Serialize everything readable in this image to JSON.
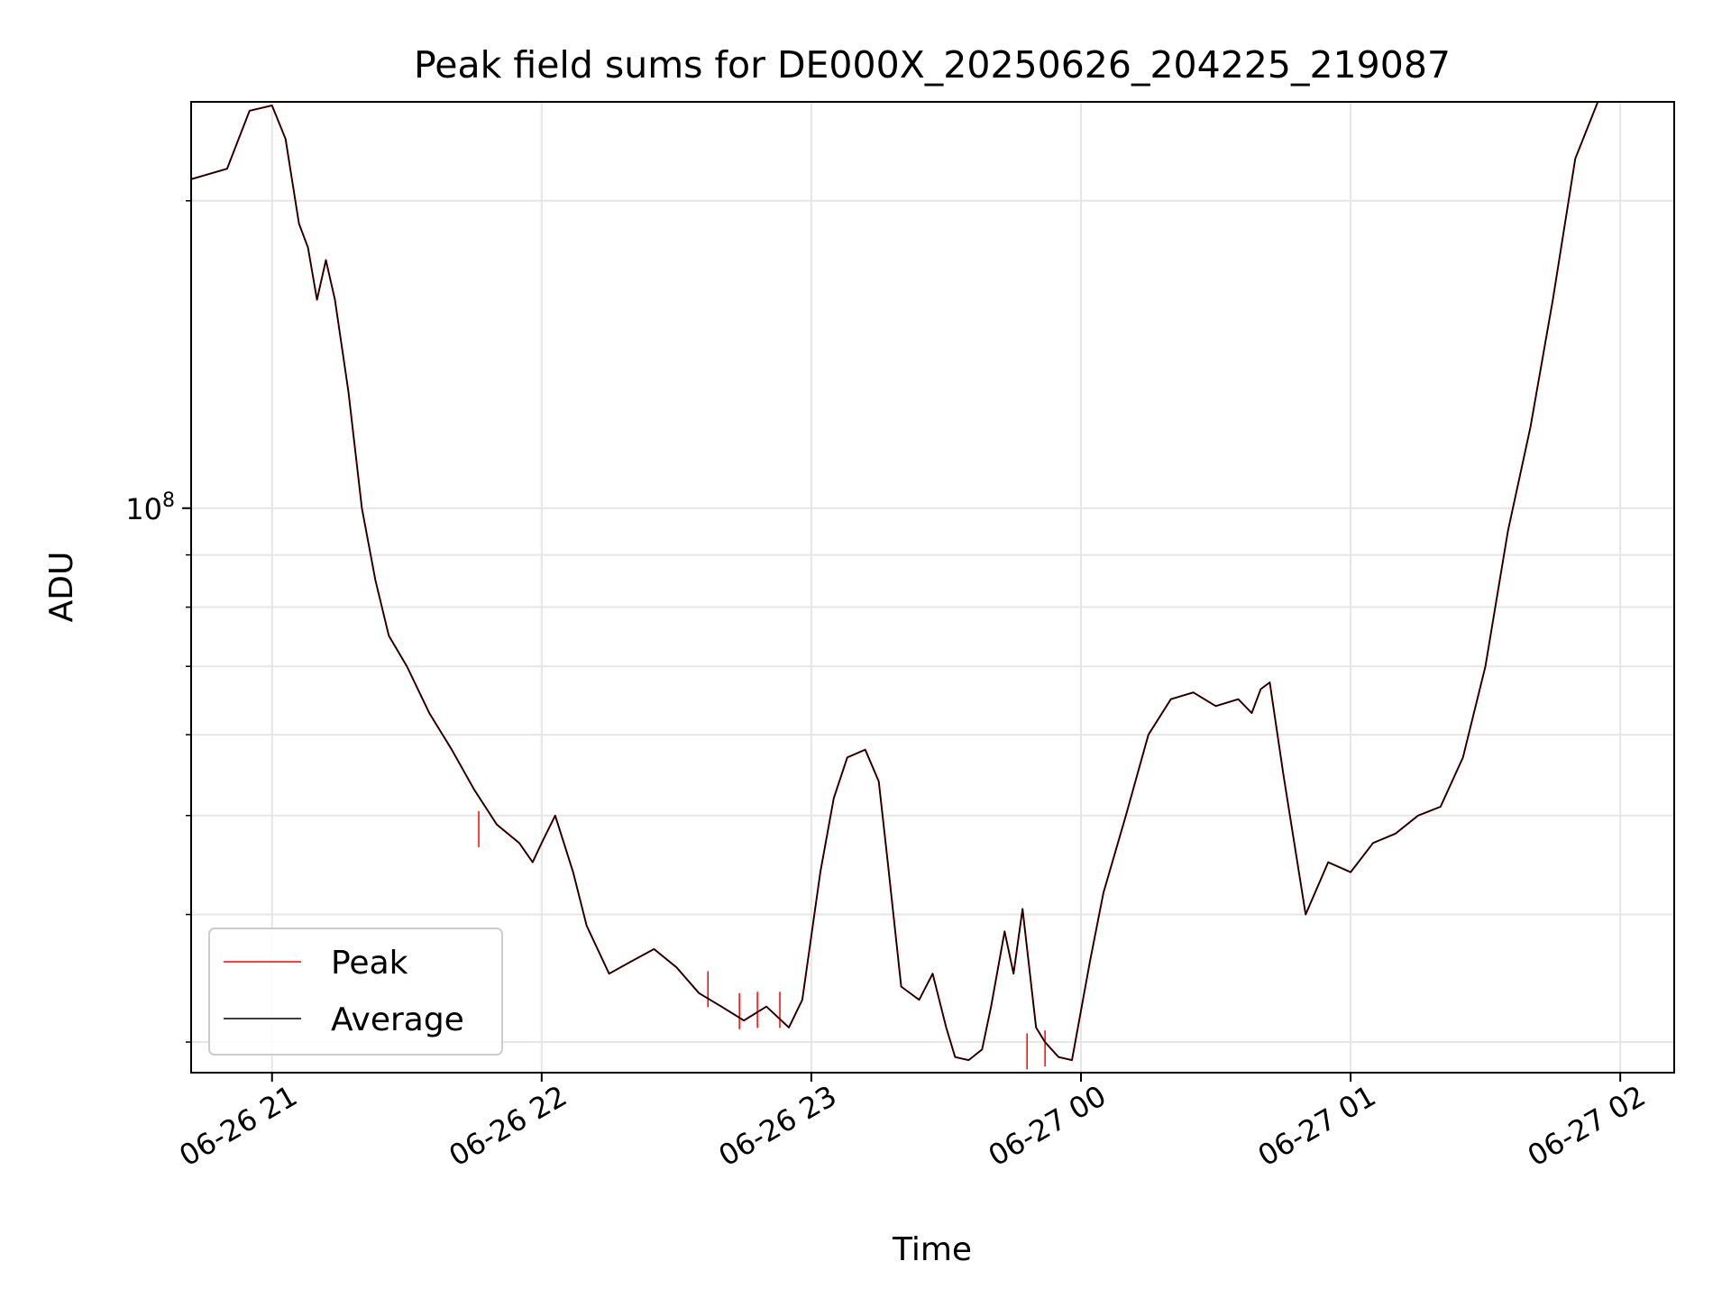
{
  "chart_data": {
    "type": "line",
    "title": "Peak field sums for DE000X_20250626_204225_219087",
    "xlabel": "Time",
    "ylabel": "ADU",
    "yscale": "log",
    "xlim": [
      "2025-06-26 20:42",
      "2025-06-27 02:12"
    ],
    "ylim": [
      28000000,
      250000000
    ],
    "x_tick_labels": [
      "06-26 21",
      "06-26 22",
      "06-26 23",
      "06-27 00",
      "06-27 01",
      "06-27 02"
    ],
    "y_tick_labels": [
      "10^8"
    ],
    "grid": true,
    "legend": {
      "position": "lower-left",
      "entries": [
        "Peak",
        "Average"
      ]
    },
    "series": [
      {
        "name": "Peak",
        "color": "#ff0000",
        "x": [
          "2025-06-26 20:42",
          "2025-06-26 20:50",
          "2025-06-26 20:55",
          "2025-06-26 21:00",
          "2025-06-26 21:03",
          "2025-06-26 21:06",
          "2025-06-26 21:08",
          "2025-06-26 21:10",
          "2025-06-26 21:12",
          "2025-06-26 21:14",
          "2025-06-26 21:17",
          "2025-06-26 21:20",
          "2025-06-26 21:23",
          "2025-06-26 21:26",
          "2025-06-26 21:30",
          "2025-06-26 21:35",
          "2025-06-26 21:40",
          "2025-06-26 21:45",
          "2025-06-26 21:50",
          "2025-06-26 21:55",
          "2025-06-26 21:58",
          "2025-06-26 22:00",
          "2025-06-26 22:03",
          "2025-06-26 22:07",
          "2025-06-26 22:10",
          "2025-06-26 22:15",
          "2025-06-26 22:20",
          "2025-06-26 22:25",
          "2025-06-26 22:30",
          "2025-06-26 22:35",
          "2025-06-26 22:40",
          "2025-06-26 22:45",
          "2025-06-26 22:50",
          "2025-06-26 22:55",
          "2025-06-26 22:58",
          "2025-06-26 23:02",
          "2025-06-26 23:05",
          "2025-06-26 23:08",
          "2025-06-26 23:12",
          "2025-06-26 23:15",
          "2025-06-26 23:17",
          "2025-06-26 23:20",
          "2025-06-26 23:24",
          "2025-06-26 23:27",
          "2025-06-26 23:30",
          "2025-06-26 23:32",
          "2025-06-26 23:35",
          "2025-06-26 23:38",
          "2025-06-26 23:40",
          "2025-06-26 23:43",
          "2025-06-26 23:45",
          "2025-06-26 23:47",
          "2025-06-26 23:50",
          "2025-06-26 23:52",
          "2025-06-26 23:55",
          "2025-06-26 23:58",
          "2025-06-27 00:02",
          "2025-06-27 00:05",
          "2025-06-27 00:10",
          "2025-06-27 00:15",
          "2025-06-27 00:20",
          "2025-06-27 00:25",
          "2025-06-27 00:30",
          "2025-06-27 00:35",
          "2025-06-27 00:38",
          "2025-06-27 00:40",
          "2025-06-27 00:42",
          "2025-06-27 00:45",
          "2025-06-27 00:50",
          "2025-06-27 00:55",
          "2025-06-27 01:00",
          "2025-06-27 01:05",
          "2025-06-27 01:10",
          "2025-06-27 01:15",
          "2025-06-27 01:20",
          "2025-06-27 01:25",
          "2025-06-27 01:30",
          "2025-06-27 01:35",
          "2025-06-27 01:40",
          "2025-06-27 01:45",
          "2025-06-27 01:50",
          "2025-06-27 01:55"
        ],
        "values": [
          210000000,
          215000000,
          245000000,
          248000000,
          230000000,
          190000000,
          180000000,
          160000000,
          175000000,
          160000000,
          130000000,
          100000000,
          85000000,
          75000000,
          70000000,
          63000000,
          58000000,
          53000000,
          49000000,
          47000000,
          45000000,
          47000000,
          50000000,
          44000000,
          39000000,
          35000000,
          36000000,
          37000000,
          35500000,
          33500000,
          32500000,
          31500000,
          32500000,
          31000000,
          33000000,
          44000000,
          52000000,
          57000000,
          58000000,
          54000000,
          45000000,
          34000000,
          33000000,
          35000000,
          31000000,
          29000000,
          28800000,
          29500000,
          32500000,
          38500000,
          35000000,
          40500000,
          31000000,
          30000000,
          29000000,
          28800000,
          36000000,
          42000000,
          50000000,
          60000000,
          65000000,
          66000000,
          64000000,
          65000000,
          63000000,
          66500000,
          67500000,
          55000000,
          40000000,
          45000000,
          44000000,
          47000000,
          48000000,
          50000000,
          51000000,
          57000000,
          70000000,
          95000000,
          120000000,
          160000000,
          220000000,
          250000000
        ],
        "spikes": [
          {
            "x": "2025-06-26 21:46",
            "y": 50500000
          },
          {
            "x": "2025-06-26 22:37",
            "y": 35200000
          },
          {
            "x": "2025-06-26 22:44",
            "y": 33500000
          },
          {
            "x": "2025-06-26 22:48",
            "y": 33600000
          },
          {
            "x": "2025-06-26 22:53",
            "y": 33600000
          },
          {
            "x": "2025-06-26 23:48",
            "y": 30600000
          },
          {
            "x": "2025-06-26 23:52",
            "y": 30800000
          }
        ]
      },
      {
        "name": "Average",
        "color": "#000000",
        "x": [
          "2025-06-26 20:42",
          "2025-06-26 20:50",
          "2025-06-26 20:55",
          "2025-06-26 21:00",
          "2025-06-26 21:03",
          "2025-06-26 21:06",
          "2025-06-26 21:08",
          "2025-06-26 21:10",
          "2025-06-26 21:12",
          "2025-06-26 21:14",
          "2025-06-26 21:17",
          "2025-06-26 21:20",
          "2025-06-26 21:23",
          "2025-06-26 21:26",
          "2025-06-26 21:30",
          "2025-06-26 21:35",
          "2025-06-26 21:40",
          "2025-06-26 21:45",
          "2025-06-26 21:50",
          "2025-06-26 21:55",
          "2025-06-26 21:58",
          "2025-06-26 22:00",
          "2025-06-26 22:03",
          "2025-06-26 22:07",
          "2025-06-26 22:10",
          "2025-06-26 22:15",
          "2025-06-26 22:20",
          "2025-06-26 22:25",
          "2025-06-26 22:30",
          "2025-06-26 22:35",
          "2025-06-26 22:40",
          "2025-06-26 22:45",
          "2025-06-26 22:50",
          "2025-06-26 22:55",
          "2025-06-26 22:58",
          "2025-06-26 23:02",
          "2025-06-26 23:05",
          "2025-06-26 23:08",
          "2025-06-26 23:12",
          "2025-06-26 23:15",
          "2025-06-26 23:17",
          "2025-06-26 23:20",
          "2025-06-26 23:24",
          "2025-06-26 23:27",
          "2025-06-26 23:30",
          "2025-06-26 23:32",
          "2025-06-26 23:35",
          "2025-06-26 23:38",
          "2025-06-26 23:40",
          "2025-06-26 23:43",
          "2025-06-26 23:45",
          "2025-06-26 23:47",
          "2025-06-26 23:50",
          "2025-06-26 23:52",
          "2025-06-26 23:55",
          "2025-06-26 23:58",
          "2025-06-27 00:02",
          "2025-06-27 00:05",
          "2025-06-27 00:10",
          "2025-06-27 00:15",
          "2025-06-27 00:20",
          "2025-06-27 00:25",
          "2025-06-27 00:30",
          "2025-06-27 00:35",
          "2025-06-27 00:38",
          "2025-06-27 00:40",
          "2025-06-27 00:42",
          "2025-06-27 00:45",
          "2025-06-27 00:50",
          "2025-06-27 00:55",
          "2025-06-27 01:00",
          "2025-06-27 01:05",
          "2025-06-27 01:10",
          "2025-06-27 01:15",
          "2025-06-27 01:20",
          "2025-06-27 01:25",
          "2025-06-27 01:30",
          "2025-06-27 01:35",
          "2025-06-27 01:40",
          "2025-06-27 01:45",
          "2025-06-27 01:50",
          "2025-06-27 01:55"
        ],
        "values": [
          210000000,
          215000000,
          245000000,
          248000000,
          230000000,
          190000000,
          180000000,
          160000000,
          175000000,
          160000000,
          130000000,
          100000000,
          85000000,
          75000000,
          70000000,
          63000000,
          58000000,
          53000000,
          49000000,
          47000000,
          45000000,
          47000000,
          50000000,
          44000000,
          39000000,
          35000000,
          36000000,
          37000000,
          35500000,
          33500000,
          32500000,
          31500000,
          32500000,
          31000000,
          33000000,
          44000000,
          52000000,
          57000000,
          58000000,
          54000000,
          45000000,
          34000000,
          33000000,
          35000000,
          31000000,
          29000000,
          28800000,
          29500000,
          32500000,
          38500000,
          35000000,
          40500000,
          31000000,
          30000000,
          29000000,
          28800000,
          36000000,
          42000000,
          50000000,
          60000000,
          65000000,
          66000000,
          64000000,
          65000000,
          63000000,
          66500000,
          67500000,
          55000000,
          40000000,
          45000000,
          44000000,
          47000000,
          48000000,
          50000000,
          51000000,
          57000000,
          70000000,
          95000000,
          120000000,
          160000000,
          220000000,
          250000000
        ]
      }
    ]
  }
}
